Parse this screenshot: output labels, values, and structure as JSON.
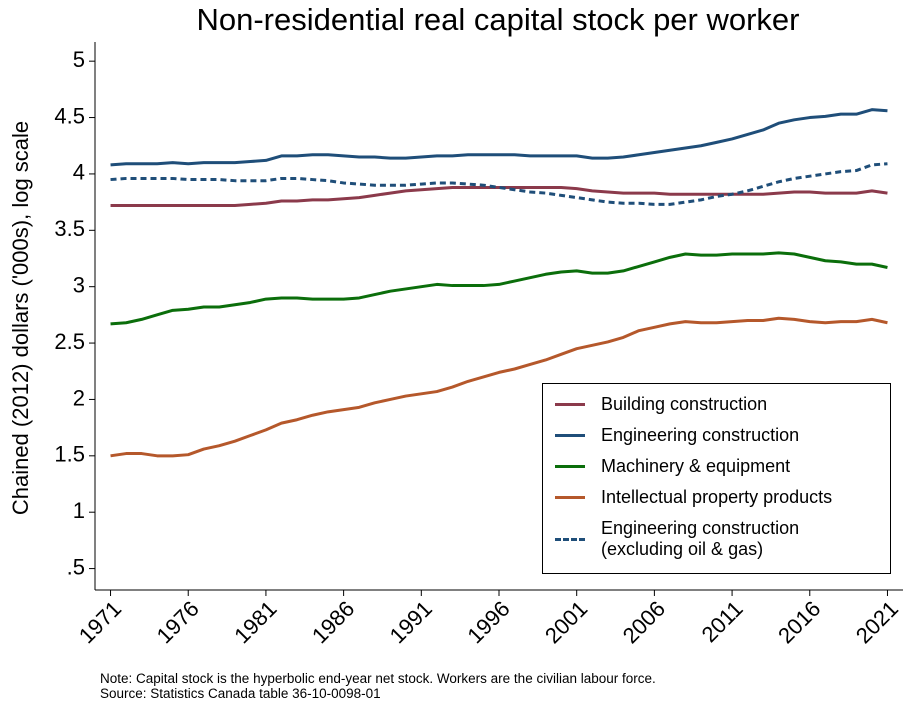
{
  "chart_data": {
    "type": "line",
    "title": "Non-residential real capital stock per worker",
    "y_label": "Chained (2012) dollars ('000s), log scale",
    "note": "Note: Capital stock is the hyperbolic end-year net stock. Workers are the civilian labour force.",
    "source": "Source: Statistics Canada table 36-10-0098-01",
    "x": [
      1971,
      1972,
      1973,
      1974,
      1975,
      1976,
      1977,
      1978,
      1979,
      1980,
      1981,
      1982,
      1983,
      1984,
      1985,
      1986,
      1987,
      1988,
      1989,
      1990,
      1991,
      1992,
      1993,
      1994,
      1995,
      1996,
      1997,
      1998,
      1999,
      2000,
      2001,
      2002,
      2003,
      2004,
      2005,
      2006,
      2007,
      2008,
      2009,
      2010,
      2011,
      2012,
      2013,
      2014,
      2015,
      2016,
      2017,
      2018,
      2019,
      2020,
      2021
    ],
    "xlim": [
      1970,
      2022
    ],
    "xticks": [
      1971,
      1976,
      1981,
      1986,
      1991,
      1996,
      2001,
      2006,
      2011,
      2016,
      2021
    ],
    "ylim": [
      0.31,
      5.17
    ],
    "yticks": [
      {
        "value": 0.5,
        "label": ".5"
      },
      1,
      1.5,
      2,
      2.5,
      3,
      3.5,
      4,
      4.5,
      5
    ],
    "legend_position": "lower right",
    "series": [
      {
        "name": "Building construction",
        "color": "#8b3a4b",
        "line_style": "solid",
        "values": [
          3.72,
          3.72,
          3.72,
          3.72,
          3.72,
          3.72,
          3.72,
          3.72,
          3.72,
          3.73,
          3.74,
          3.76,
          3.76,
          3.77,
          3.77,
          3.78,
          3.79,
          3.81,
          3.83,
          3.85,
          3.86,
          3.87,
          3.88,
          3.88,
          3.88,
          3.88,
          3.88,
          3.88,
          3.88,
          3.88,
          3.87,
          3.85,
          3.84,
          3.83,
          3.83,
          3.83,
          3.82,
          3.82,
          3.82,
          3.82,
          3.82,
          3.82,
          3.82,
          3.83,
          3.84,
          3.84,
          3.83,
          3.83,
          3.83,
          3.85,
          3.83
        ]
      },
      {
        "name": "Engineering construction",
        "color": "#1f4e79",
        "line_style": "solid",
        "values": [
          4.08,
          4.09,
          4.09,
          4.09,
          4.1,
          4.09,
          4.1,
          4.1,
          4.1,
          4.11,
          4.12,
          4.16,
          4.16,
          4.17,
          4.17,
          4.16,
          4.15,
          4.15,
          4.14,
          4.14,
          4.15,
          4.16,
          4.16,
          4.17,
          4.17,
          4.17,
          4.17,
          4.16,
          4.16,
          4.16,
          4.16,
          4.14,
          4.14,
          4.15,
          4.17,
          4.19,
          4.21,
          4.23,
          4.25,
          4.28,
          4.31,
          4.35,
          4.39,
          4.45,
          4.48,
          4.5,
          4.51,
          4.53,
          4.53,
          4.57,
          4.56
        ]
      },
      {
        "name": "Machinery & equipment",
        "color": "#0b6e0b",
        "line_style": "solid",
        "values": [
          2.67,
          2.68,
          2.71,
          2.75,
          2.79,
          2.8,
          2.82,
          2.82,
          2.84,
          2.86,
          2.89,
          2.9,
          2.9,
          2.89,
          2.89,
          2.89,
          2.9,
          2.93,
          2.96,
          2.98,
          3.0,
          3.02,
          3.01,
          3.01,
          3.01,
          3.02,
          3.05,
          3.08,
          3.11,
          3.13,
          3.14,
          3.12,
          3.12,
          3.14,
          3.18,
          3.22,
          3.26,
          3.29,
          3.28,
          3.28,
          3.29,
          3.29,
          3.29,
          3.3,
          3.29,
          3.26,
          3.23,
          3.22,
          3.2,
          3.2,
          3.17
        ]
      },
      {
        "name": "Intellectual property products",
        "color": "#b5582b",
        "line_style": "solid",
        "values": [
          1.5,
          1.52,
          1.52,
          1.5,
          1.5,
          1.51,
          1.56,
          1.59,
          1.63,
          1.68,
          1.73,
          1.79,
          1.82,
          1.86,
          1.89,
          1.91,
          1.93,
          1.97,
          2.0,
          2.03,
          2.05,
          2.07,
          2.11,
          2.16,
          2.2,
          2.24,
          2.27,
          2.31,
          2.35,
          2.4,
          2.45,
          2.48,
          2.51,
          2.55,
          2.61,
          2.64,
          2.67,
          2.69,
          2.68,
          2.68,
          2.69,
          2.7,
          2.7,
          2.72,
          2.71,
          2.69,
          2.68,
          2.69,
          2.69,
          2.71,
          2.68
        ]
      },
      {
        "name": "Engineering construction\n(excluding oil & gas)",
        "color": "#1f4e79",
        "line_style": "dashed",
        "values": [
          3.95,
          3.96,
          3.96,
          3.96,
          3.96,
          3.95,
          3.95,
          3.95,
          3.94,
          3.94,
          3.94,
          3.96,
          3.96,
          3.95,
          3.94,
          3.92,
          3.91,
          3.9,
          3.9,
          3.9,
          3.91,
          3.92,
          3.92,
          3.91,
          3.9,
          3.88,
          3.86,
          3.84,
          3.83,
          3.81,
          3.79,
          3.77,
          3.75,
          3.74,
          3.74,
          3.73,
          3.73,
          3.75,
          3.77,
          3.8,
          3.82,
          3.85,
          3.89,
          3.93,
          3.96,
          3.98,
          4.0,
          4.02,
          4.03,
          4.08,
          4.09
        ]
      }
    ]
  }
}
